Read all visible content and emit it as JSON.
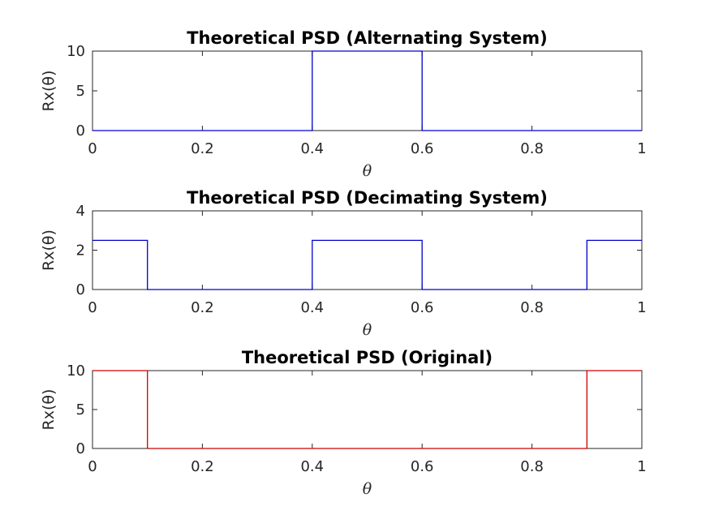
{
  "chart_data": [
    {
      "type": "line",
      "title": "Theoretical PSD (Alternating System)",
      "xlabel": "θ",
      "ylabel": "Rx(θ)",
      "xlim": [
        0,
        1
      ],
      "ylim": [
        0,
        10
      ],
      "xticks": [
        "0",
        "0.2",
        "0.4",
        "0.6",
        "0.8",
        "1"
      ],
      "yticks": [
        "0",
        "5",
        "10"
      ],
      "grid": false,
      "color": "#0000cc",
      "x": [
        0,
        0.4,
        0.4,
        0.6,
        0.6,
        1.0
      ],
      "y": [
        0,
        0,
        10,
        10,
        0,
        0
      ]
    },
    {
      "type": "line",
      "title": "Theoretical PSD (Decimating System)",
      "xlabel": "θ",
      "ylabel": "Rx(θ)",
      "xlim": [
        0,
        1
      ],
      "ylim": [
        0,
        4
      ],
      "xticks": [
        "0",
        "0.2",
        "0.4",
        "0.6",
        "0.8",
        "1"
      ],
      "yticks": [
        "0",
        "2",
        "4"
      ],
      "grid": false,
      "color": "#0000cc",
      "x": [
        0,
        0.1,
        0.1,
        0.4,
        0.4,
        0.6,
        0.6,
        0.9,
        0.9,
        1.0
      ],
      "y": [
        2.5,
        2.5,
        0,
        0,
        2.5,
        2.5,
        0,
        0,
        2.5,
        2.5
      ]
    },
    {
      "type": "line",
      "title": "Theoretical PSD (Original)",
      "xlabel": "θ",
      "ylabel": "Rx(θ)",
      "xlim": [
        0,
        1
      ],
      "ylim": [
        0,
        10
      ],
      "xticks": [
        "0",
        "0.2",
        "0.4",
        "0.6",
        "0.8",
        "1"
      ],
      "yticks": [
        "0",
        "5",
        "10"
      ],
      "grid": false,
      "color": "#cc0000",
      "x": [
        0,
        0.1,
        0.1,
        0.9,
        0.9,
        1.0
      ],
      "y": [
        10,
        10,
        0,
        0,
        10,
        10
      ]
    }
  ]
}
